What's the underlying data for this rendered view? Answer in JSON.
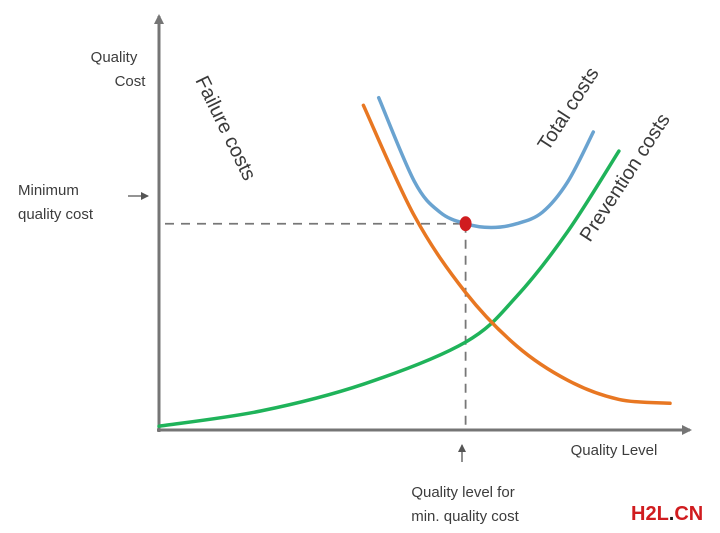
{
  "chart_data": {
    "type": "line",
    "xlabel": "Quality Level",
    "ylabel_lines": [
      "Quality",
      "Cost"
    ],
    "xlim": [
      0,
      10
    ],
    "ylim": [
      0,
      10
    ],
    "series": [
      {
        "name": "Failure costs",
        "color": "#e87722",
        "x": [
          4.0,
          5.0,
          6.0,
          7.0,
          8.0,
          9.0,
          10.0
        ],
        "y": [
          8.5,
          5.6,
          3.6,
          2.2,
          1.3,
          0.8,
          0.7
        ]
      },
      {
        "name": "Prevention costs",
        "color": "#1fb35a",
        "x": [
          0.0,
          2.0,
          4.0,
          6.0,
          7.0,
          8.0,
          9.0
        ],
        "y": [
          0.1,
          0.5,
          1.2,
          2.3,
          3.5,
          5.2,
          7.3
        ]
      },
      {
        "name": "Total costs",
        "color": "#6aa3d0",
        "x": [
          4.3,
          5.0,
          5.5,
          6.0,
          6.5,
          7.0,
          7.5,
          8.0,
          8.5
        ],
        "y": [
          8.7,
          6.5,
          5.7,
          5.4,
          5.3,
          5.4,
          5.7,
          6.5,
          7.8
        ]
      }
    ],
    "minimum_point": {
      "x": 6.0,
      "y": 5.4,
      "color": "#d01c1f"
    },
    "annotations": {
      "min_cost_lines": [
        "Minimum",
        "quality cost"
      ],
      "level_lines": [
        "Quality level for",
        "min. quality cost"
      ]
    },
    "grid": false,
    "legend": "none"
  },
  "watermark": {
    "h2l": "H2L",
    "dot": ".",
    "cn": "CN",
    "color_main": "#d01c1f",
    "color_dot": "#1a1a1a"
  },
  "colors": {
    "axis": "#757575",
    "dash": "#777777"
  }
}
